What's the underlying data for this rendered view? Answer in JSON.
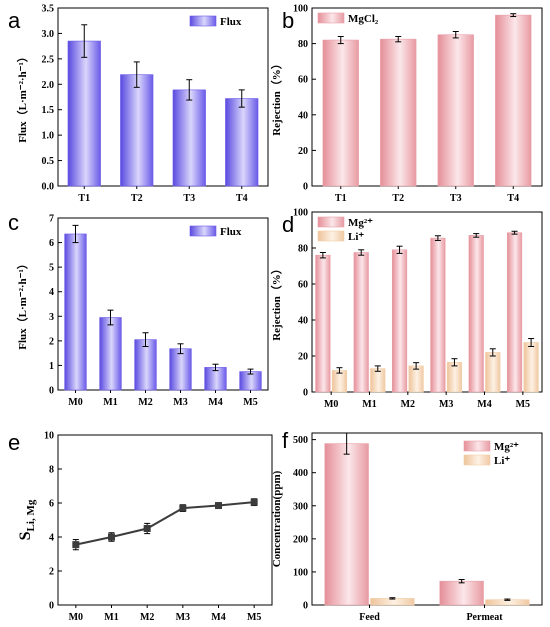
{
  "chart_data": [
    {
      "panel": "a",
      "type": "bar",
      "categories": [
        "T1",
        "T2",
        "T3",
        "T4"
      ],
      "series": [
        {
          "name": "Flux",
          "values": [
            2.85,
            2.19,
            1.89,
            1.72
          ],
          "errors": [
            0.32,
            0.25,
            0.2,
            0.17
          ]
        }
      ],
      "ylabel": "Flux（L·m⁻²·h⁻¹）",
      "ylim": [
        0,
        3.5
      ],
      "yticks": [
        "0.0",
        "0.5",
        "1.0",
        "1.5",
        "2.0",
        "2.5",
        "3.0",
        "3.5"
      ],
      "legend": "top-right",
      "colors": {
        "Flux": "#6a5ae8"
      }
    },
    {
      "panel": "b",
      "type": "bar",
      "categories": [
        "T1",
        "T2",
        "T3",
        "T4"
      ],
      "series": [
        {
          "name": "MgCl₂",
          "values": [
            82,
            82.5,
            85,
            96
          ],
          "errors": [
            2,
            1.5,
            1.8,
            0.8
          ]
        }
      ],
      "ylabel": "Rejection（%）",
      "ylim": [
        0,
        100
      ],
      "yticks": [
        "0",
        "20",
        "40",
        "60",
        "80",
        "100"
      ],
      "legend": "top-left",
      "colors": {
        "MgCl₂": "#e8a0a8"
      }
    },
    {
      "panel": "c",
      "type": "bar",
      "categories": [
        "M0",
        "M1",
        "M2",
        "M3",
        "M4",
        "M5"
      ],
      "series": [
        {
          "name": "Flux",
          "values": [
            6.35,
            2.95,
            2.05,
            1.68,
            0.92,
            0.75
          ],
          "errors": [
            0.35,
            0.3,
            0.28,
            0.2,
            0.13,
            0.1
          ]
        }
      ],
      "ylabel": "Flux（L·m⁻²·h⁻¹）",
      "ylim": [
        0,
        7
      ],
      "yticks": [
        "0",
        "1",
        "2",
        "3",
        "4",
        "5",
        "6",
        "7"
      ],
      "legend": "top-right",
      "colors": {
        "Flux": "#6a5ae8"
      }
    },
    {
      "panel": "d",
      "type": "bar",
      "categories": [
        "M0",
        "M1",
        "M2",
        "M3",
        "M4",
        "M5"
      ],
      "series": [
        {
          "name": "Mg²⁺",
          "values": [
            76,
            77.5,
            79,
            85.5,
            87,
            88.5
          ],
          "errors": [
            1.5,
            1.5,
            2,
            1.3,
            1,
            0.8
          ]
        },
        {
          "name": "Li⁺",
          "values": [
            12,
            13,
            14.5,
            16.5,
            22,
            27.5
          ],
          "errors": [
            1.5,
            1.5,
            1.8,
            2,
            2,
            2.2
          ]
        }
      ],
      "ylabel": "Rejection（%）",
      "ylim": [
        0,
        100
      ],
      "yticks": [
        "0",
        "20",
        "40",
        "60",
        "80",
        "100"
      ],
      "legend": "top-left",
      "colors": {
        "Mg²⁺": "#e8a0a8",
        "Li⁺": "#f2cfa8"
      }
    },
    {
      "panel": "e",
      "type": "line",
      "categories": [
        "M0",
        "M1",
        "M2",
        "M3",
        "M4",
        "M5"
      ],
      "series": [
        {
          "values": [
            3.55,
            4.0,
            4.5,
            5.7,
            5.85,
            6.05
          ],
          "errors": [
            0.3,
            0.25,
            0.3,
            0.2,
            0.15,
            0.2
          ]
        }
      ],
      "ylabel_main": "S",
      "ylabel_sub": "Li, Mg",
      "ylim": [
        0,
        10
      ],
      "yticks": [
        "0",
        "2",
        "4",
        "6",
        "8",
        "10"
      ],
      "colors": {
        "line": "#3c3c3c"
      }
    },
    {
      "panel": "f",
      "type": "bar",
      "categories": [
        "Feed",
        "Permeat"
      ],
      "series": [
        {
          "name": "Mg²⁺",
          "values": [
            488,
            72
          ],
          "errors": [
            32,
            5
          ]
        },
        {
          "name": "Li⁺",
          "values": [
            20,
            16
          ],
          "errors": [
            2,
            2
          ]
        }
      ],
      "ylabel": "Concentration(ppm)",
      "ylim": [
        0,
        520
      ],
      "yticks": [
        "0",
        "100",
        "200",
        "300",
        "400",
        "500"
      ],
      "legend": "top-right",
      "colors": {
        "Mg²⁺": "#e8a0a8",
        "Li⁺": "#f2cfa8"
      }
    }
  ]
}
